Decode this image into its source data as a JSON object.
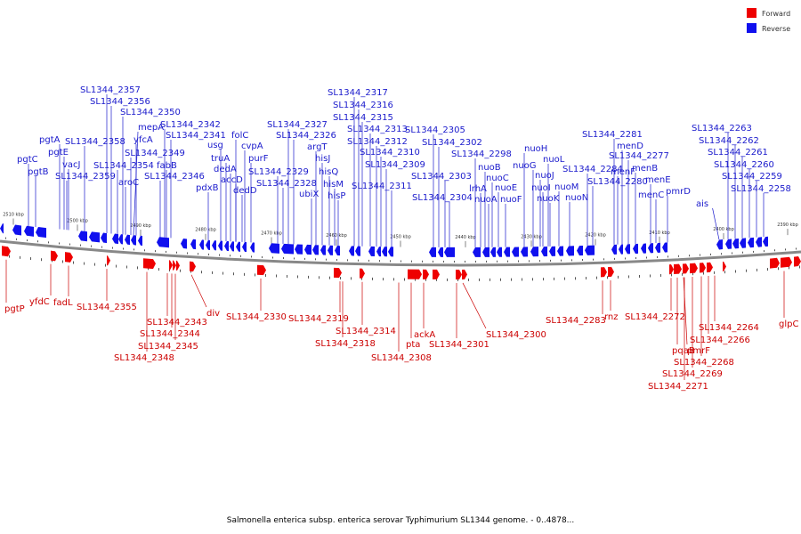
{
  "colors": {
    "forward": "#ee0000",
    "reverse": "#1010ee",
    "forward_line": "#cc0000",
    "reverse_line": "#1a1acc",
    "backbone": "#888888"
  },
  "legend": {
    "forward": "Forward",
    "reverse": "Reverse"
  },
  "caption": "Salmonella enterica subsp. enterica serovar Typhimurium SL1344 genome. - 0..4878...",
  "ticks": [
    "2510 kbp",
    "2500 kbp",
    "2490 kbp",
    "2480 kbp",
    "2470 kbp",
    "2460 kbp",
    "2450 kbp",
    "2440 kbp",
    "2430 kbp",
    "2420 kbp",
    "2410 kbp",
    "2400 kbp",
    "2390 kbp"
  ],
  "reverse_labels": [
    "SL1344_2357",
    "SL1344_2356",
    "SL1344_2350",
    "mepA",
    "yfcA",
    "SL1344_2349",
    "SL1344_2342",
    "SL1344_2341",
    "folC",
    "cvpA",
    "purF",
    "SL1344_2358",
    "pgtA",
    "pgtE",
    "pgtC",
    "pgtB",
    "vacJ",
    "SL1344_2359",
    "SL1344_2354",
    "aroC",
    "fabB",
    "SL1344_2346",
    "usg",
    "truA",
    "dedA",
    "accD",
    "dedD",
    "pdxB",
    "SL1344_2329",
    "SL1344_2328",
    "SL1344_2327",
    "SL1344_2326",
    "argT",
    "hisJ",
    "hisQ",
    "hisM",
    "hisP",
    "ubiX",
    "SL1344_2317",
    "SL1344_2316",
    "SL1344_2315",
    "SL1344_2313",
    "SL1344_2312",
    "SL1344_2310",
    "SL1344_2309",
    "SL1344_2311",
    "SL1344_2305",
    "SL1344_2302",
    "SL1344_2303",
    "SL1344_2304",
    "SL1344_2298",
    "nuoB",
    "nuoC",
    "nuoE",
    "nuoF",
    "lrhA",
    "nuoA",
    "nuoH",
    "nuoG",
    "nuoJ",
    "nuoL",
    "nuoI",
    "nuoK",
    "nuoM",
    "nuoN",
    "SL1344_2281",
    "menD",
    "SL1344_2277",
    "menB",
    "menE",
    "menF",
    "menC",
    "SL1344_2284",
    "SL1344_2280",
    "pmrD",
    "ais",
    "SL1344_2263",
    "SL1344_2262",
    "SL1344_2261",
    "SL1344_2260",
    "SL1344_2259",
    "SL1344_2258"
  ],
  "forward_labels": [
    "pgtP",
    "yfdC",
    "fadL",
    "SL1344_2355",
    "SL1344_2343",
    "SL1344_2344",
    "SL1344_2345",
    "SL1344_2348",
    "div",
    "SL1344_2330",
    "SL1344_2319",
    "SL1344_2318",
    "SL1344_2314",
    "SL1344_2308",
    "pta",
    "ackA",
    "SL1344_2301",
    "SL1344_2300",
    "SL1344_2283",
    "rnz",
    "SL1344_2272",
    "pqaB",
    "pmrF",
    "SL1344_2264",
    "SL1344_2266",
    "SL1344_2268",
    "SL1344_2269",
    "SL1344_2271",
    "glpC"
  ]
}
